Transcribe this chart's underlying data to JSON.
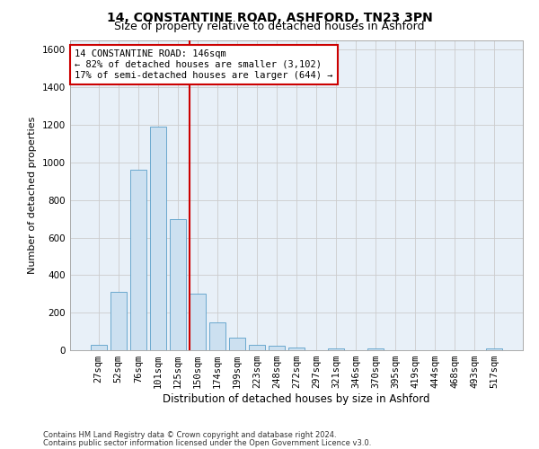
{
  "title1": "14, CONSTANTINE ROAD, ASHFORD, TN23 3PN",
  "title2": "Size of property relative to detached houses in Ashford",
  "xlabel": "Distribution of detached houses by size in Ashford",
  "ylabel": "Number of detached properties",
  "categories": [
    "27sqm",
    "52sqm",
    "76sqm",
    "101sqm",
    "125sqm",
    "150sqm",
    "174sqm",
    "199sqm",
    "223sqm",
    "248sqm",
    "272sqm",
    "297sqm",
    "321sqm",
    "346sqm",
    "370sqm",
    "395sqm",
    "419sqm",
    "444sqm",
    "468sqm",
    "493sqm",
    "517sqm"
  ],
  "values": [
    30,
    310,
    960,
    1190,
    700,
    300,
    150,
    65,
    30,
    25,
    15,
    0,
    10,
    0,
    10,
    0,
    0,
    0,
    0,
    0,
    10
  ],
  "bar_color": "#cce0f0",
  "bar_edge_color": "#5a9fc8",
  "bar_width": 0.8,
  "ylim": [
    0,
    1650
  ],
  "yticks": [
    0,
    200,
    400,
    600,
    800,
    1000,
    1200,
    1400,
    1600
  ],
  "vline_x": 4.62,
  "vline_color": "#cc0000",
  "annotation_text": "14 CONSTANTINE ROAD: 146sqm\n← 82% of detached houses are smaller (3,102)\n17% of semi-detached houses are larger (644) →",
  "annotation_box_color": "#ffffff",
  "annotation_box_edge": "#cc0000",
  "footnote1": "Contains HM Land Registry data © Crown copyright and database right 2024.",
  "footnote2": "Contains public sector information licensed under the Open Government Licence v3.0.",
  "bg_color": "#ffffff",
  "plot_bg_color": "#e8f0f8",
  "grid_color": "#cccccc",
  "title1_fontsize": 10,
  "title2_fontsize": 9,
  "xlabel_fontsize": 8.5,
  "ylabel_fontsize": 8,
  "tick_fontsize": 7.5,
  "annotation_fontsize": 7.5,
  "footnote_fontsize": 6
}
